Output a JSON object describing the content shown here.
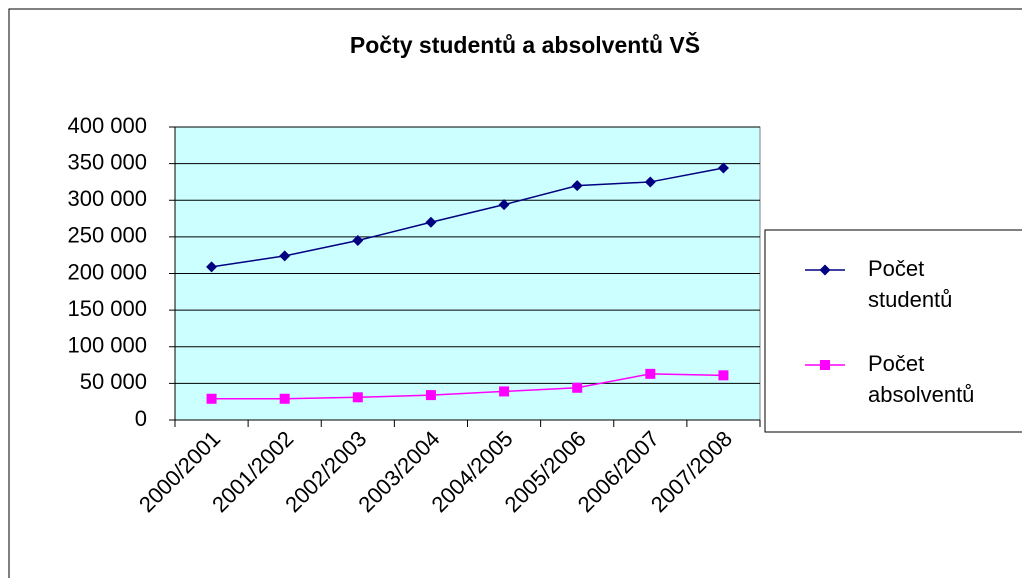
{
  "chart_data": {
    "type": "line",
    "title": "Počty studentů a absolventů VŠ",
    "categories": [
      "2000/2001",
      "2001/2002",
      "2002/2003",
      "2003/2004",
      "2004/2005",
      "2005/2006",
      "2006/2007",
      "2007/2008"
    ],
    "series": [
      {
        "name": "Počet studentů",
        "color": "#000080",
        "marker": "diamond",
        "values": [
          209000,
          224000,
          245000,
          270000,
          294000,
          320000,
          325000,
          344000
        ]
      },
      {
        "name": "Počet absolventů",
        "color": "#ff00ff",
        "marker": "square",
        "values": [
          29000,
          29000,
          31000,
          34000,
          39000,
          44000,
          63000,
          61000
        ]
      }
    ],
    "ylim": [
      0,
      400000
    ],
    "yticks": [
      0,
      {
        "value": 50000,
        "label": "50 000"
      },
      {
        "value": 100000,
        "label": "100 000"
      },
      {
        "value": 150000,
        "label": "150 000"
      },
      {
        "value": 200000,
        "label": "200 000"
      },
      {
        "value": 250000,
        "label": "250 000"
      },
      {
        "value": 300000,
        "label": "300 000"
      },
      {
        "value": 350000,
        "label": "350 000"
      },
      {
        "value": 400000,
        "label": "400 000"
      }
    ],
    "grid": true,
    "legend": "right"
  }
}
